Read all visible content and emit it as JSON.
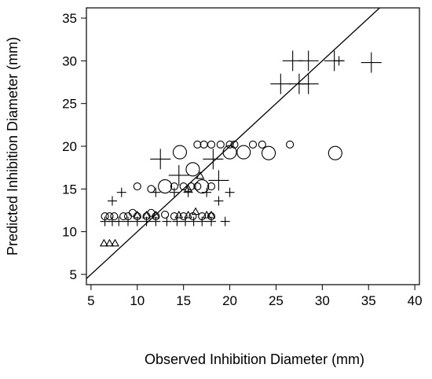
{
  "chart_data": {
    "type": "scatter",
    "title": "",
    "xlabel": "Observed Inhibition Diameter (mm)",
    "ylabel": "Predicted Inhibition Diameter (mm)",
    "xlim": [
      4.5,
      40.5
    ],
    "ylim": [
      3.8,
      36.2
    ],
    "xticks": [
      5,
      10,
      15,
      20,
      25,
      30,
      35,
      40
    ],
    "yticks": [
      5,
      10,
      15,
      20,
      25,
      30,
      35
    ],
    "grid": false,
    "legend": "none",
    "reference_line": {
      "slope": 1,
      "intercept": 0
    },
    "colors": {
      "points": "#000000",
      "axes": "#000000"
    },
    "series": [
      {
        "marker": "plus",
        "points": [
          {
            "x": 6.5,
            "y": 11.2,
            "size": 1
          },
          {
            "x": 7.3,
            "y": 11.2,
            "size": 1
          },
          {
            "x": 8.0,
            "y": 11.2,
            "size": 1
          },
          {
            "x": 9.0,
            "y": 11.2,
            "size": 1
          },
          {
            "x": 10.0,
            "y": 11.2,
            "size": 1
          },
          {
            "x": 11.0,
            "y": 11.2,
            "size": 1
          },
          {
            "x": 12.0,
            "y": 11.2,
            "size": 1
          },
          {
            "x": 13.2,
            "y": 11.2,
            "size": 1
          },
          {
            "x": 14.3,
            "y": 11.2,
            "size": 1
          },
          {
            "x": 15.2,
            "y": 11.2,
            "size": 1
          },
          {
            "x": 16.1,
            "y": 11.2,
            "size": 1
          },
          {
            "x": 17.0,
            "y": 11.2,
            "size": 1
          },
          {
            "x": 18.0,
            "y": 11.2,
            "size": 1
          },
          {
            "x": 19.5,
            "y": 11.2,
            "size": 1
          },
          {
            "x": 7.3,
            "y": 13.6,
            "size": 1
          },
          {
            "x": 8.3,
            "y": 14.6,
            "size": 1
          },
          {
            "x": 12.0,
            "y": 14.6,
            "size": 1
          },
          {
            "x": 14.0,
            "y": 14.6,
            "size": 1
          },
          {
            "x": 15.5,
            "y": 14.6,
            "size": 1
          },
          {
            "x": 17.5,
            "y": 14.6,
            "size": 1
          },
          {
            "x": 20.0,
            "y": 14.6,
            "size": 1
          },
          {
            "x": 18.8,
            "y": 13.6,
            "size": 1
          },
          {
            "x": 12.5,
            "y": 18.5,
            "size": 2
          },
          {
            "x": 14.5,
            "y": 16.6,
            "size": 2
          },
          {
            "x": 18.2,
            "y": 18.5,
            "size": 2
          },
          {
            "x": 18.8,
            "y": 16.0,
            "size": 2
          },
          {
            "x": 25.5,
            "y": 27.3,
            "size": 2
          },
          {
            "x": 26.8,
            "y": 30.0,
            "size": 2
          },
          {
            "x": 27.5,
            "y": 27.3,
            "size": 2
          },
          {
            "x": 28.5,
            "y": 27.3,
            "size": 2
          },
          {
            "x": 28.5,
            "y": 30.0,
            "size": 2
          },
          {
            "x": 31.3,
            "y": 30.0,
            "size": 2
          },
          {
            "x": 31.8,
            "y": 30.0,
            "size": 1
          },
          {
            "x": 35.3,
            "y": 29.8,
            "size": 2
          }
        ]
      },
      {
        "marker": "circle",
        "points": [
          {
            "x": 6.5,
            "y": 11.8,
            "size": 1
          },
          {
            "x": 7.0,
            "y": 11.8,
            "size": 1
          },
          {
            "x": 7.5,
            "y": 11.8,
            "size": 1
          },
          {
            "x": 8.5,
            "y": 11.8,
            "size": 1
          },
          {
            "x": 9.0,
            "y": 11.8,
            "size": 1
          },
          {
            "x": 9.5,
            "y": 12.2,
            "size": 1
          },
          {
            "x": 10.0,
            "y": 11.8,
            "size": 1
          },
          {
            "x": 11.0,
            "y": 11.8,
            "size": 1
          },
          {
            "x": 11.5,
            "y": 12.2,
            "size": 1
          },
          {
            "x": 12.0,
            "y": 11.8,
            "size": 1
          },
          {
            "x": 13.0,
            "y": 12.0,
            "size": 1
          },
          {
            "x": 14.0,
            "y": 11.8,
            "size": 1
          },
          {
            "x": 15.0,
            "y": 11.8,
            "size": 1
          },
          {
            "x": 16.0,
            "y": 11.8,
            "size": 1
          },
          {
            "x": 17.0,
            "y": 11.8,
            "size": 1
          },
          {
            "x": 18.0,
            "y": 11.8,
            "size": 1
          },
          {
            "x": 10.0,
            "y": 15.3,
            "size": 1
          },
          {
            "x": 11.5,
            "y": 15.0,
            "size": 1
          },
          {
            "x": 13.0,
            "y": 15.3,
            "size": 2
          },
          {
            "x": 14.0,
            "y": 15.3,
            "size": 1
          },
          {
            "x": 15.0,
            "y": 15.3,
            "size": 1
          },
          {
            "x": 15.8,
            "y": 15.3,
            "size": 1
          },
          {
            "x": 16.5,
            "y": 15.3,
            "size": 1
          },
          {
            "x": 17.0,
            "y": 15.3,
            "size": 2
          },
          {
            "x": 18.0,
            "y": 15.3,
            "size": 1
          },
          {
            "x": 14.6,
            "y": 19.3,
            "size": 2
          },
          {
            "x": 16.0,
            "y": 17.3,
            "size": 2
          },
          {
            "x": 16.5,
            "y": 20.2,
            "size": 1
          },
          {
            "x": 17.2,
            "y": 20.2,
            "size": 1
          },
          {
            "x": 18.0,
            "y": 20.2,
            "size": 1
          },
          {
            "x": 19.0,
            "y": 20.2,
            "size": 1
          },
          {
            "x": 20.0,
            "y": 20.2,
            "size": 1
          },
          {
            "x": 20.5,
            "y": 20.2,
            "size": 1
          },
          {
            "x": 22.5,
            "y": 20.2,
            "size": 1
          },
          {
            "x": 23.5,
            "y": 20.2,
            "size": 1
          },
          {
            "x": 26.5,
            "y": 20.2,
            "size": 1
          },
          {
            "x": 20.0,
            "y": 19.3,
            "size": 2
          },
          {
            "x": 21.5,
            "y": 19.3,
            "size": 2
          },
          {
            "x": 24.2,
            "y": 19.2,
            "size": 2
          },
          {
            "x": 31.4,
            "y": 19.2,
            "size": 2
          }
        ]
      },
      {
        "marker": "triangle",
        "points": [
          {
            "x": 6.4,
            "y": 8.6,
            "size": 1
          },
          {
            "x": 7.0,
            "y": 8.6,
            "size": 1
          },
          {
            "x": 7.6,
            "y": 8.6,
            "size": 1
          },
          {
            "x": 10.0,
            "y": 11.9,
            "size": 1
          },
          {
            "x": 11.0,
            "y": 11.9,
            "size": 1
          },
          {
            "x": 12.0,
            "y": 11.9,
            "size": 1
          },
          {
            "x": 14.5,
            "y": 11.9,
            "size": 1
          },
          {
            "x": 15.5,
            "y": 11.9,
            "size": 1
          },
          {
            "x": 16.3,
            "y": 12.3,
            "size": 1
          },
          {
            "x": 17.5,
            "y": 11.9,
            "size": 1
          },
          {
            "x": 18.0,
            "y": 11.9,
            "size": 1
          },
          {
            "x": 15.5,
            "y": 15.0,
            "size": 1
          },
          {
            "x": 16.8,
            "y": 16.5,
            "size": 1
          }
        ]
      }
    ]
  }
}
